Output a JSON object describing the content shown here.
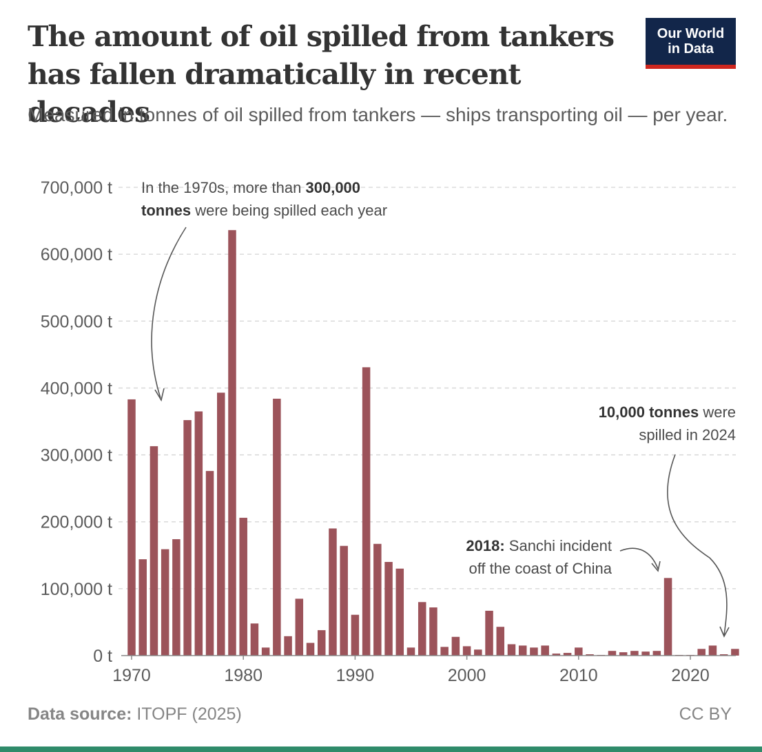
{
  "brand": {
    "logo_line1": "Our World",
    "logo_line2": "in Data",
    "logo_bg": "#12264a",
    "logo_accent": "#ce261e",
    "footer_accent": "#2f8b6a"
  },
  "header": {
    "title": "The amount of oil spilled from tankers has fallen dramatically in recent decades",
    "subtitle": "Measured in tonnes of oil spilled from tankers — ships transporting oil — per year."
  },
  "footer": {
    "source_label": "Data source:",
    "source_value": "ITOPF (2025)",
    "license": "CC BY"
  },
  "chart_data": {
    "type": "bar",
    "bar_color": "#9c535a",
    "grid": true,
    "ylim": [
      0,
      700000
    ],
    "y_ticks": [
      0,
      100000,
      200000,
      300000,
      400000,
      500000,
      600000,
      700000
    ],
    "y_tick_labels": [
      "0 t",
      "100,000 t",
      "200,000 t",
      "300,000 t",
      "400,000 t",
      "500,000 t",
      "600,000 t",
      "700,000 t"
    ],
    "x_ticks": [
      1970,
      1980,
      1990,
      2000,
      2010,
      2020
    ],
    "x_tick_labels": [
      "1970",
      "1980",
      "1990",
      "2000",
      "2010",
      "2020"
    ],
    "x": [
      1970,
      1971,
      1972,
      1973,
      1974,
      1975,
      1976,
      1977,
      1978,
      1979,
      1980,
      1981,
      1982,
      1983,
      1984,
      1985,
      1986,
      1987,
      1988,
      1989,
      1990,
      1991,
      1992,
      1993,
      1994,
      1995,
      1996,
      1997,
      1998,
      1999,
      2000,
      2001,
      2002,
      2003,
      2004,
      2005,
      2006,
      2007,
      2008,
      2009,
      2010,
      2011,
      2012,
      2013,
      2014,
      2015,
      2016,
      2017,
      2018,
      2019,
      2020,
      2021,
      2022,
      2023,
      2024
    ],
    "values": [
      383000,
      144000,
      313000,
      159000,
      174000,
      352000,
      365000,
      276000,
      393000,
      636000,
      206000,
      48000,
      12000,
      384000,
      29000,
      85000,
      19000,
      38000,
      190000,
      164000,
      61000,
      431000,
      167000,
      140000,
      130000,
      12000,
      80000,
      72000,
      13000,
      28000,
      14000,
      9000,
      67000,
      43000,
      17000,
      15000,
      12000,
      15000,
      3000,
      4000,
      12000,
      2000,
      1000,
      7000,
      5000,
      7000,
      6000,
      7000,
      116000,
      1000,
      1000,
      10000,
      15000,
      2000,
      10000
    ],
    "annotations": [
      {
        "id": "1970s",
        "parts": [
          {
            "text": "In the 1970s, more than ",
            "bold": false
          },
          {
            "text": "300,000",
            "bold": true
          },
          {
            "text": "tonnes",
            "bold": true
          },
          {
            "text": " were being spilled each year",
            "bold": false
          }
        ]
      },
      {
        "id": "2024",
        "parts": [
          {
            "text": "10,000 tonnes",
            "bold": true
          },
          {
            "text": " were",
            "bold": false
          },
          {
            "text": "spilled in 2024",
            "bold": false
          }
        ]
      },
      {
        "id": "2018",
        "parts": [
          {
            "text": "2018:",
            "bold": true
          },
          {
            "text": " Sanchi incident",
            "bold": false
          },
          {
            "text": "off the coast of China",
            "bold": false
          }
        ]
      }
    ]
  }
}
